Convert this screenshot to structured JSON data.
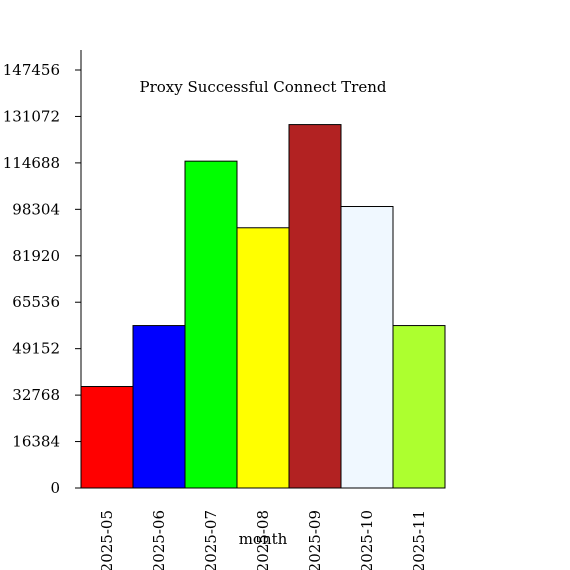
{
  "chart_data": {
    "type": "bar",
    "title": "Proxy Successful Connect Trend",
    "xlabel": "month",
    "ylabel": "",
    "categories": [
      "2025-05",
      "2025-06",
      "2025-07",
      "2025-08",
      "2025-09",
      "2025-10",
      "2025-11"
    ],
    "values": [
      35800,
      57300,
      115300,
      91800,
      128200,
      99300,
      57300
    ],
    "colors": [
      "#ff0000",
      "#0000ff",
      "#00ff00",
      "#ffff00",
      "#b22222",
      "#f0f8ff",
      "#adff2f"
    ],
    "yticks": [
      0,
      16384,
      32768,
      49152,
      65536,
      81920,
      98304,
      114688,
      131072,
      147456
    ],
    "ylim": [
      0,
      147456
    ],
    "grid": false,
    "legend": "none"
  }
}
